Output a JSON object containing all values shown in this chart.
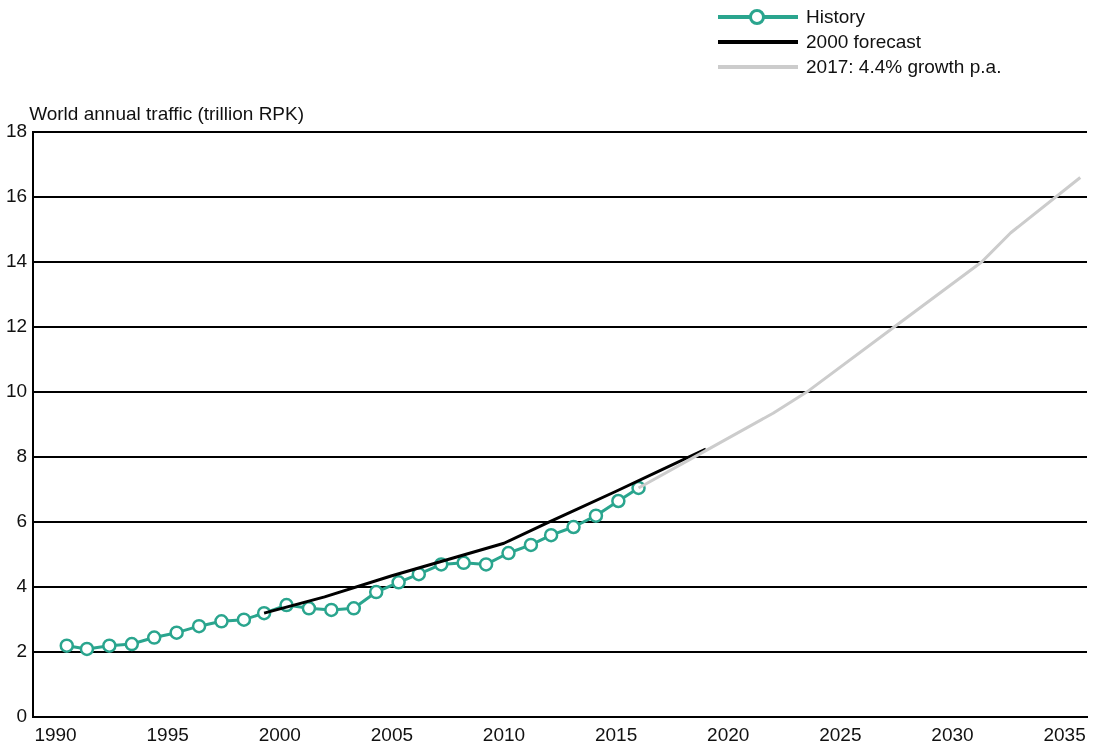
{
  "chart_data": {
    "type": "line",
    "ylabel": "World annual traffic (trillion RPK)",
    "xlim": [
      1989,
      2036
    ],
    "xticks": [
      1990,
      1995,
      2000,
      2005,
      2010,
      2015,
      2020,
      2025,
      2030,
      2035
    ],
    "ylim": [
      0,
      18
    ],
    "yticks": [
      0,
      2,
      4,
      6,
      8,
      10,
      12,
      14,
      16,
      18
    ],
    "grid": "y",
    "legend": "top right",
    "series": [
      {
        "name": "History",
        "color": "#2aa58e",
        "marker": "circle",
        "x": [
          1990.5,
          1991.4,
          1992.4,
          1993.4,
          1994.4,
          1995.4,
          1996.4,
          1997.4,
          1998.4,
          1999.3,
          2000.3,
          2001.3,
          2002.3,
          2003.3,
          2004.3,
          2005.3,
          2006.2,
          2007.2,
          2008.2,
          2009.2,
          2010.2,
          2011.2,
          2012.1,
          2013.1,
          2014.1,
          2015.1,
          2016.0
        ],
        "values": [
          2.2,
          2.1,
          2.2,
          2.25,
          2.45,
          2.6,
          2.8,
          2.95,
          3.0,
          3.2,
          3.45,
          3.35,
          3.3,
          3.35,
          3.85,
          4.15,
          4.4,
          4.7,
          4.75,
          4.7,
          5.05,
          5.3,
          5.6,
          5.85,
          6.2,
          6.65,
          7.05
        ]
      },
      {
        "name": "2000 forecast",
        "color": "#000000",
        "marker": "none",
        "x": [
          1999.3,
          2002,
          2005,
          2008,
          2010,
          2012,
          2015,
          2017,
          2019
        ],
        "values": [
          3.2,
          3.7,
          4.35,
          4.95,
          5.35,
          6.0,
          6.95,
          7.6,
          8.25
        ]
      },
      {
        "name": "2017: 4.4% growth p.a.",
        "color": "#cccccc",
        "marker": "none",
        "x": [
          2016.0,
          2019,
          2022,
          2023.5,
          2027.4,
          2031.3,
          2032.6,
          2035.7
        ],
        "values": [
          7.05,
          8.2,
          9.35,
          10.0,
          12.0,
          14.0,
          14.9,
          16.6
        ]
      }
    ]
  }
}
